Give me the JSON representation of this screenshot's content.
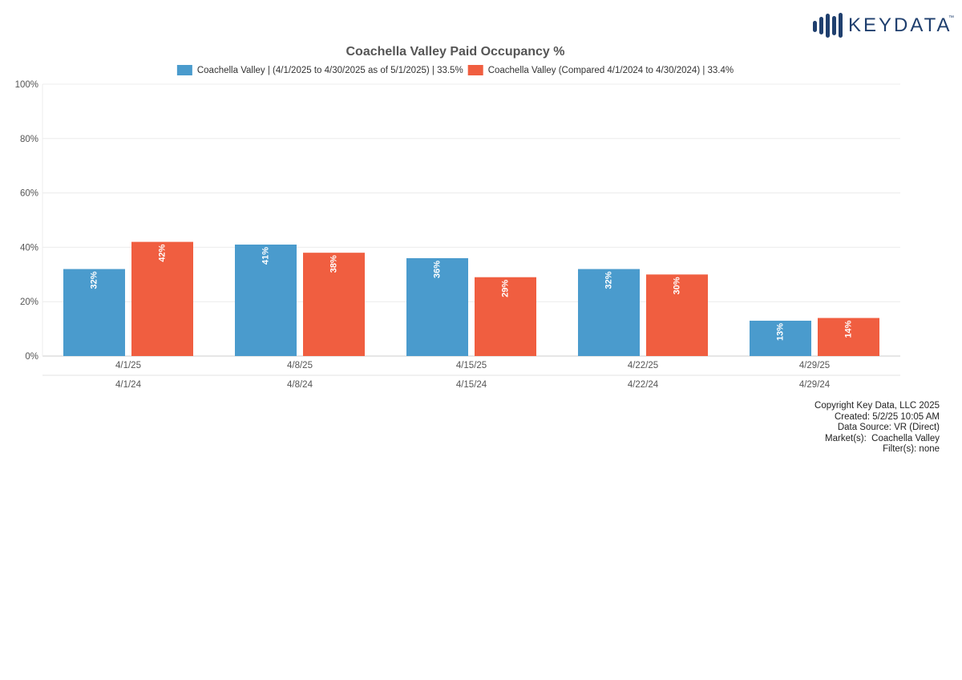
{
  "brand": {
    "logo_text": "KEYDATA",
    "trademark": "™",
    "logo_color": "#1f3f6e"
  },
  "chart_data": {
    "type": "bar",
    "title": "Coachella Valley Paid Occupancy %",
    "categories": [
      "4/1/25",
      "4/8/25",
      "4/15/25",
      "4/22/25",
      "4/29/25"
    ],
    "secondary_categories": [
      "4/1/24",
      "4/8/24",
      "4/15/24",
      "4/22/24",
      "4/29/24"
    ],
    "series": [
      {
        "name": "Coachella Valley | (4/1/2025 to 4/30/2025 as of 5/1/2025) | 33.5%",
        "color": "#4a9bcd",
        "values": [
          32,
          41,
          36,
          32,
          13
        ],
        "labels": [
          "32%",
          "41%",
          "36%",
          "32%",
          "13%"
        ]
      },
      {
        "name": "Coachella Valley (Compared 4/1/2024 to 4/30/2024) | 33.4%",
        "color": "#f05e40",
        "values": [
          42,
          38,
          29,
          30,
          14
        ],
        "labels": [
          "42%",
          "38%",
          "29%",
          "30%",
          "14%"
        ]
      }
    ],
    "ylim": [
      0,
      100
    ],
    "yticks": [
      0,
      20,
      40,
      60,
      80,
      100
    ],
    "ytick_labels": [
      "0%",
      "20%",
      "40%",
      "60%",
      "80%",
      "100%"
    ],
    "grid": true,
    "legend_position": "top-center"
  },
  "footer": {
    "copyright": "Copyright Key Data, LLC 2025",
    "created": "Created: 5/2/25 10:05 AM",
    "data_source": "Data Source: VR (Direct)",
    "markets": "Market(s):  Coachella Valley",
    "filters": "Filter(s): none"
  }
}
